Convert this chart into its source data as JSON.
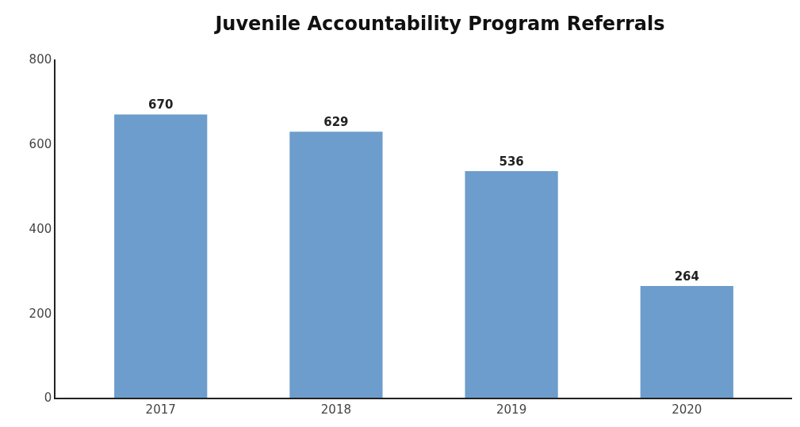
{
  "chart_data": {
    "type": "bar",
    "title": "Juvenile Accountability Program Referrals",
    "categories": [
      "2017",
      "2018",
      "2019",
      "2020"
    ],
    "values": [
      670,
      629,
      536,
      264
    ],
    "color": "#6d9dcc",
    "ylim": [
      0,
      800
    ],
    "yticks": [
      0,
      200,
      400,
      600,
      800
    ],
    "data_labels": true
  }
}
